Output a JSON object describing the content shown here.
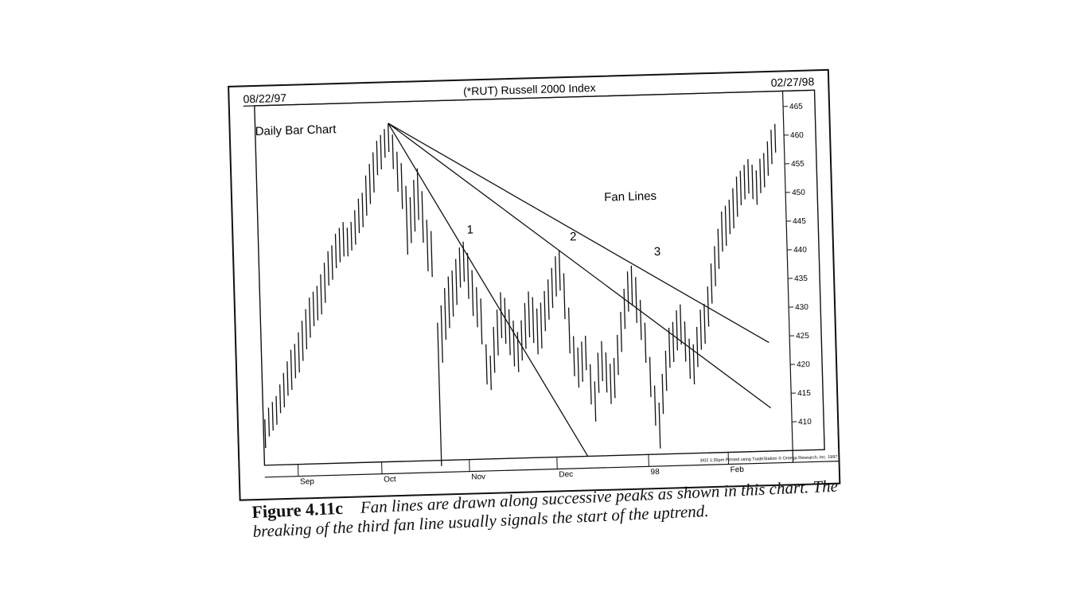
{
  "header": {
    "date_start": "08/22/97",
    "title": "(*RUT) Russell 2000 Index",
    "date_end": "02/27/98"
  },
  "chart_label": "Daily Bar Chart",
  "annotation": "Fan Lines",
  "fan_line_labels": [
    "1",
    "2",
    "3"
  ],
  "footer_note": "3/02  1:35pm Printed using TradeStation © Omega Research, Inc. 1997",
  "caption": {
    "number": "Figure 4.11c",
    "text": "Fan lines are drawn along successive peaks as shown in this chart. The breaking of the third fan line usually signals the start of the uptrend."
  },
  "chart_data": {
    "type": "ohlc",
    "title": "(*RUT) Russell 2000 Index",
    "x_labels": [
      "Sep",
      "Oct",
      "Nov",
      "Dec",
      "98",
      "Feb"
    ],
    "y_ticks": [
      465,
      460,
      455,
      450,
      445,
      440,
      435,
      430,
      425,
      420,
      415,
      410
    ],
    "ylim": [
      405,
      467
    ],
    "x_range": [
      0,
      131
    ],
    "x_label_index": [
      8,
      29,
      51,
      73,
      96,
      116
    ],
    "bars": [
      [
        413,
        408
      ],
      [
        415,
        410
      ],
      [
        416,
        411
      ],
      [
        417,
        412
      ],
      [
        419,
        414
      ],
      [
        421,
        415
      ],
      [
        423,
        417
      ],
      [
        425,
        418
      ],
      [
        426,
        420
      ],
      [
        428,
        421
      ],
      [
        430,
        423
      ],
      [
        432,
        425
      ],
      [
        434,
        427
      ],
      [
        435,
        429
      ],
      [
        436,
        430
      ],
      [
        438,
        431
      ],
      [
        440,
        433
      ],
      [
        442,
        436
      ],
      [
        443,
        437
      ],
      [
        445,
        439
      ],
      [
        446,
        440
      ],
      [
        447,
        441
      ],
      [
        446,
        441
      ],
      [
        447,
        442
      ],
      [
        449,
        443
      ],
      [
        451,
        445
      ],
      [
        452,
        446
      ],
      [
        455,
        448
      ],
      [
        457,
        450
      ],
      [
        459,
        452
      ],
      [
        461,
        455
      ],
      [
        462,
        456
      ],
      [
        463,
        458
      ],
      [
        464,
        459
      ],
      [
        462,
        456
      ],
      [
        459,
        452
      ],
      [
        457,
        449
      ],
      [
        453,
        441
      ],
      [
        451,
        443
      ],
      [
        454,
        445
      ],
      [
        456,
        447
      ],
      [
        452,
        443
      ],
      [
        447,
        438
      ],
      [
        445,
        437
      ],
      [
        429,
        404
      ],
      [
        432,
        422
      ],
      [
        435,
        426
      ],
      [
        437,
        428
      ],
      [
        438,
        430
      ],
      [
        440,
        432
      ],
      [
        442,
        435
      ],
      [
        443,
        436
      ],
      [
        441,
        433
      ],
      [
        438,
        430
      ],
      [
        435,
        428
      ],
      [
        433,
        425
      ],
      [
        425,
        418
      ],
      [
        423,
        417
      ],
      [
        428,
        420
      ],
      [
        431,
        423
      ],
      [
        434,
        426
      ],
      [
        433,
        425
      ],
      [
        431,
        423
      ],
      [
        429,
        421
      ],
      [
        427,
        420
      ],
      [
        429,
        422
      ],
      [
        432,
        424
      ],
      [
        434,
        426
      ],
      [
        433,
        425
      ],
      [
        431,
        423
      ],
      [
        432,
        424
      ],
      [
        434,
        427
      ],
      [
        436,
        429
      ],
      [
        438,
        431
      ],
      [
        440,
        433
      ],
      [
        441,
        434
      ],
      [
        437,
        429
      ],
      [
        431,
        423
      ],
      [
        426,
        419
      ],
      [
        424,
        417
      ],
      [
        425,
        418
      ],
      [
        426,
        420
      ],
      [
        421,
        414
      ],
      [
        418,
        411
      ],
      [
        423,
        416
      ],
      [
        425,
        418
      ],
      [
        423,
        416
      ],
      [
        421,
        414
      ],
      [
        422,
        415
      ],
      [
        426,
        419
      ],
      [
        430,
        423
      ],
      [
        434,
        427
      ],
      [
        437,
        430
      ],
      [
        438,
        431
      ],
      [
        436,
        428
      ],
      [
        432,
        425
      ],
      [
        428,
        421
      ],
      [
        422,
        415
      ],
      [
        417,
        410
      ],
      [
        414,
        406
      ],
      [
        419,
        412
      ],
      [
        423,
        416
      ],
      [
        427,
        420
      ],
      [
        428,
        421
      ],
      [
        430,
        423
      ],
      [
        431,
        424
      ],
      [
        428,
        421
      ],
      [
        425,
        418
      ],
      [
        424,
        417
      ],
      [
        427,
        420
      ],
      [
        430,
        423
      ],
      [
        431,
        424
      ],
      [
        434,
        427
      ],
      [
        438,
        431
      ],
      [
        441,
        434
      ],
      [
        444,
        437
      ],
      [
        447,
        440
      ],
      [
        448,
        441
      ],
      [
        449,
        443
      ],
      [
        451,
        444
      ],
      [
        453,
        446
      ],
      [
        454,
        448
      ],
      [
        455,
        449
      ],
      [
        456,
        450
      ],
      [
        455,
        449
      ],
      [
        454,
        448
      ],
      [
        456,
        450
      ],
      [
        457,
        451
      ],
      [
        459,
        453
      ],
      [
        461,
        455
      ],
      [
        462,
        457
      ]
    ],
    "fan_lines": [
      {
        "name": "1",
        "from_x": 33,
        "from_y": 464,
        "through_x": 50,
        "through_y": 443
      },
      {
        "name": "2",
        "from_x": 33,
        "from_y": 464,
        "through_x": 75,
        "through_y": 441
      },
      {
        "name": "3",
        "from_x": 33,
        "from_y": 464,
        "through_x": 94,
        "through_y": 438
      }
    ],
    "grid": false
  },
  "colors": {
    "ink": "#111111",
    "paper": "#ffffff"
  }
}
